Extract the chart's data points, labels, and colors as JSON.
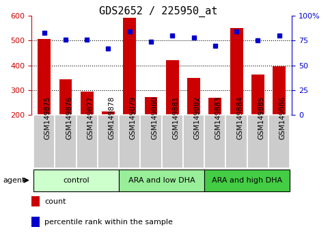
{
  "title": "GDS2652 / 225950_at",
  "samples": [
    "GSM149875",
    "GSM149876",
    "GSM149877",
    "GSM149878",
    "GSM149879",
    "GSM149880",
    "GSM149881",
    "GSM149882",
    "GSM149883",
    "GSM149884",
    "GSM149885",
    "GSM149886"
  ],
  "count_values": [
    505,
    345,
    293,
    213,
    593,
    271,
    421,
    350,
    268,
    550,
    362,
    396
  ],
  "percentile_values": [
    83,
    76,
    76,
    67,
    84,
    74,
    80,
    78,
    70,
    84,
    75,
    80
  ],
  "groups": [
    {
      "label": "control",
      "start": 0,
      "end": 3,
      "color": "#ccffcc"
    },
    {
      "label": "ARA and low DHA",
      "start": 4,
      "end": 7,
      "color": "#99ee99"
    },
    {
      "label": "ARA and high DHA",
      "start": 8,
      "end": 11,
      "color": "#44cc44"
    }
  ],
  "bar_color": "#cc0000",
  "dot_color": "#0000cc",
  "ylim_left": [
    200,
    600
  ],
  "ylim_right": [
    0,
    100
  ],
  "yticks_left": [
    200,
    300,
    400,
    500,
    600
  ],
  "yticks_right": [
    0,
    25,
    50,
    75,
    100
  ],
  "ytick_labels_right": [
    "0",
    "25",
    "50",
    "75",
    "100%"
  ],
  "grid_values": [
    300,
    400,
    500
  ],
  "title_fontsize": 11,
  "tick_fontsize": 8,
  "label_fontsize": 7.5,
  "group_fontsize": 8,
  "legend_fontsize": 8,
  "bar_width": 0.6,
  "legend_items": [
    {
      "label": "count",
      "color": "#cc0000"
    },
    {
      "label": "percentile rank within the sample",
      "color": "#0000cc"
    }
  ],
  "agent_label": "agent",
  "xtick_box_color": "#cccccc",
  "xtick_box_edge": "#aaaaaa"
}
